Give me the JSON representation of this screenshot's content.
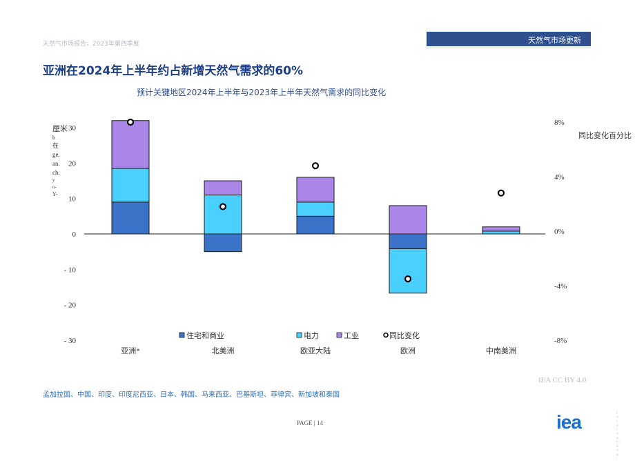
{
  "header": {
    "doc_ref": "天然气市场报告，2023年第四季度",
    "section_label": "天然气市场更新"
  },
  "title": "亚洲在2024年上半年约占新增天然气需求的60%",
  "chart_data": {
    "type": "bar",
    "subtitle": "预计关键地区2024年上半年与2023年上半年天然气需求的同比变化",
    "ylabel_left": "厘米 b 在 ge. an. ch. y o- Y-",
    "ylabel_right": "同比变化百分比",
    "ylim_left": [
      -30,
      30
    ],
    "yticks_left": [
      "30",
      "20",
      "10",
      "0",
      "- 10",
      "- 20",
      "- 30"
    ],
    "ylim_right": [
      -8,
      8
    ],
    "yticks_right": [
      "8%",
      "4%",
      "0%",
      "-4%",
      "-8%"
    ],
    "categories": [
      "亚洲*",
      "北美洲",
      "欧亚大陆",
      "欧洲",
      "中南美洲"
    ],
    "series": [
      {
        "name": "住宅和商业",
        "color": "#3b73c9",
        "values": [
          9,
          -5,
          5,
          -4.2,
          0
        ]
      },
      {
        "name": "电力",
        "color": "#49d0ff",
        "values": [
          9.5,
          11,
          4,
          -12.5,
          0.8
        ]
      },
      {
        "name": "工业",
        "color": "#aa86e8",
        "values": [
          13.5,
          4,
          7,
          8,
          1.2
        ]
      }
    ],
    "yoy_change": {
      "name": "同比变化",
      "values": [
        8.0,
        1.8,
        4.8,
        -3.5,
        2.8
      ]
    },
    "legend_position": "bottom",
    "grid": false
  },
  "footnote": "孟加拉国、中国、印度、印度尼西亚、日本、韩国、马来西亚、巴基斯坦、菲律宾、新加坡和泰国",
  "credit": "IEA CC BY 4.0",
  "page": "PAGE | 14",
  "logo_text": "iea",
  "side_mark": "I n t e r n a t i o n a l"
}
